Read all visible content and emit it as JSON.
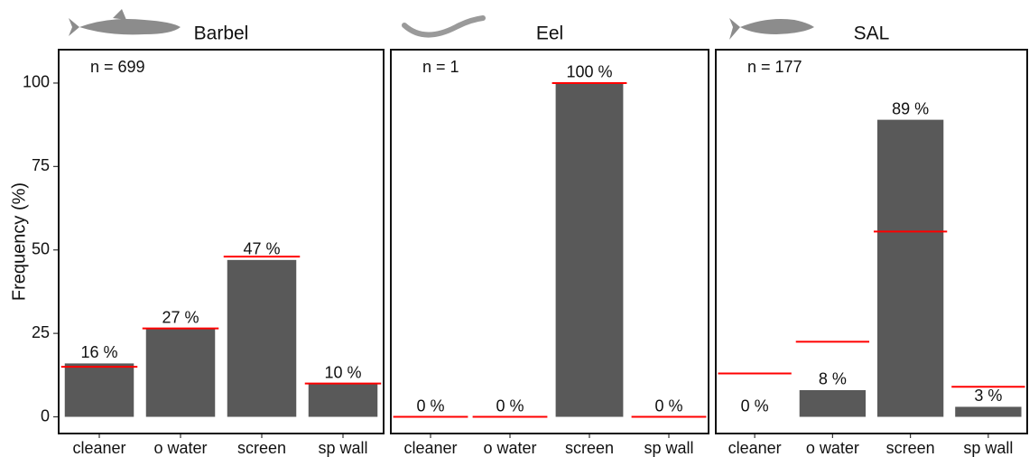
{
  "chart_data": [
    {
      "type": "bar",
      "title": "Barbel",
      "annotation": "n = 699",
      "ylabel": "Frequency (%)",
      "categories": [
        "cleaner",
        "o water",
        "screen",
        "sp wall"
      ],
      "values": [
        16,
        26.5,
        47,
        10
      ],
      "value_labels": [
        "16 %",
        "27 %",
        "47 %",
        "10 %"
      ],
      "color": "#595959",
      "reference_values": [
        15,
        26.5,
        48,
        10
      ],
      "reference_color": "#ff0000",
      "ylim": [
        -5,
        110
      ],
      "yticks": [
        0,
        25,
        50,
        75,
        100
      ]
    },
    {
      "type": "bar",
      "title": "Eel",
      "annotation": "n = 1",
      "categories": [
        "cleaner",
        "o water",
        "screen",
        "sp wall"
      ],
      "values": [
        0,
        0,
        100,
        0
      ],
      "value_labels": [
        "0 %",
        "0 %",
        "100 %",
        "0 %"
      ],
      "color": "#595959",
      "reference_values": [
        0,
        0,
        100,
        0
      ],
      "reference_color": "#ff0000",
      "ylim": [
        -5,
        110
      ]
    },
    {
      "type": "bar",
      "title": "SAL",
      "annotation": "n = 177",
      "categories": [
        "cleaner",
        "o water",
        "screen",
        "sp wall"
      ],
      "values": [
        0,
        8,
        89,
        3
      ],
      "value_labels": [
        "0 %",
        "8 %",
        "89 %",
        "3 %"
      ],
      "color": "#595959",
      "reference_values": [
        13,
        22.5,
        55.5,
        9
      ],
      "reference_color": "#ff0000",
      "ylim": [
        -5,
        110
      ]
    }
  ]
}
